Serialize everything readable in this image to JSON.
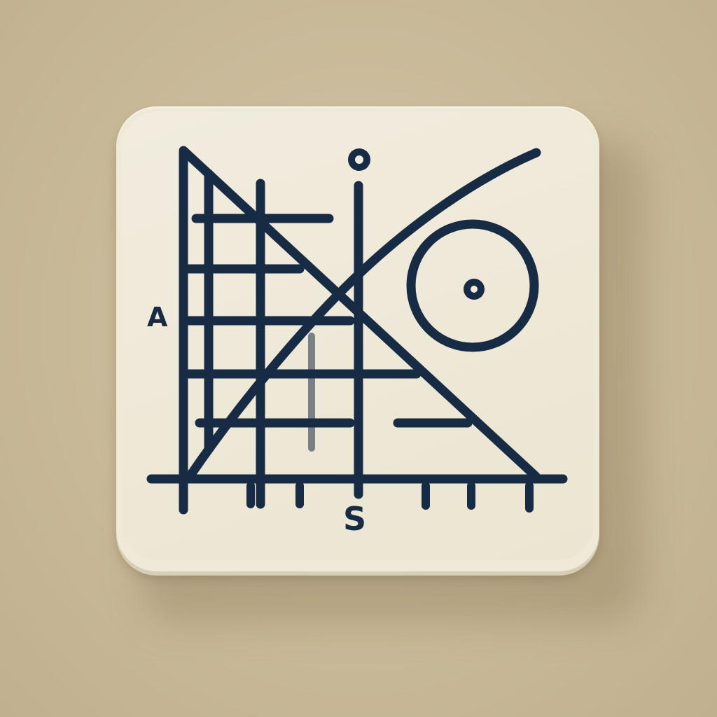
{
  "icon": {
    "ink_color": "#172b45",
    "tile_color": "#efe9d8",
    "background_color": "#c9bb9b"
  },
  "labels": {
    "left_axis": "A",
    "bottom_axis": "S"
  }
}
